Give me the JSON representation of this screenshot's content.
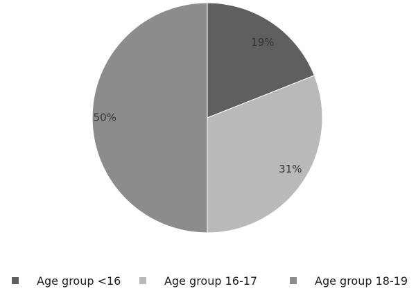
{
  "chart_data": {
    "type": "pie",
    "title": "",
    "slices": [
      {
        "name": "Age group <16",
        "value": 19,
        "label": "19%",
        "color": "#5f5f5f"
      },
      {
        "name": "Age group 16-17",
        "value": 31,
        "label": "31%",
        "color": "#b9b9b9"
      },
      {
        "name": "Age group 18-19",
        "value": 50,
        "label": "50%",
        "color": "#8c8c8c"
      }
    ],
    "start_angle": "12 o'clock",
    "direction": "clockwise",
    "legend": "bottom"
  },
  "legend": {
    "items": [
      {
        "label": "Age group <16",
        "color": "#5f5f5f"
      },
      {
        "label": "Age group 16-17",
        "color": "#b9b9b9"
      },
      {
        "label": "Age group 18-19",
        "color": "#8c8c8c"
      }
    ]
  }
}
